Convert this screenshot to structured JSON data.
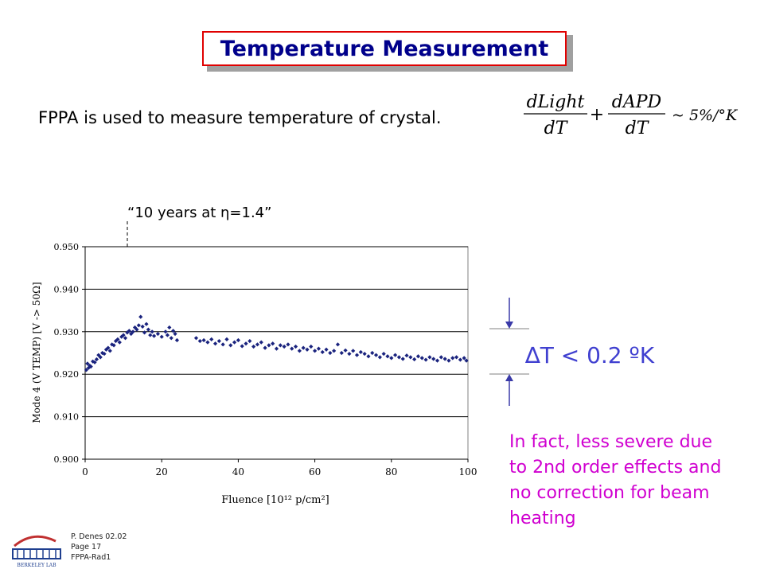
{
  "slide": {
    "title": "Temperature Measurement",
    "intro": "FPPA is used to measure temperature of crystal.",
    "formula": {
      "t1_num": "dLight",
      "t1_den": "dT",
      "plus": "+",
      "t2_num": "dAPD",
      "t2_den": "dT",
      "rhs": "~ 5%/°K"
    },
    "annotation": "“10 years at η=1.4”",
    "delta_label": "∆T < 0.2 ºK",
    "note_lines": [
      "In fact, less severe due",
      "to 2nd order effects and",
      "no correction for beam",
      "heating"
    ],
    "footer": {
      "author": "P. Denes 02.02",
      "page": "Page 17",
      "doc": "FPPA-Rad1"
    },
    "logo_text": "BERKELEY LAB"
  },
  "chart_data": {
    "type": "scatter",
    "title": "",
    "xlabel": "Fluence [10¹² p/cm²]",
    "ylabel": "Mode 4 (V TEMP) [V -> 50Ω]",
    "xlim": [
      0,
      100
    ],
    "ylim": [
      0.9,
      0.95
    ],
    "xticks": [
      "0",
      "20",
      "40",
      "60",
      "80",
      "100"
    ],
    "yticks": [
      "0.900",
      "0.910",
      "0.920",
      "0.930",
      "0.940",
      "0.950"
    ],
    "grid": "horizontal",
    "legend": "none",
    "marker_color": "#1a237e",
    "series": [
      {
        "marker": "diamond",
        "points": [
          [
            0.3,
            0.921
          ],
          [
            0.6,
            0.9225
          ],
          [
            0.9,
            0.9215
          ],
          [
            1.2,
            0.922
          ],
          [
            1.5,
            0.9218
          ],
          [
            2.0,
            0.923
          ],
          [
            2.5,
            0.9228
          ],
          [
            3.0,
            0.9235
          ],
          [
            3.5,
            0.9245
          ],
          [
            4.0,
            0.924
          ],
          [
            4.5,
            0.925
          ],
          [
            5.0,
            0.9248
          ],
          [
            5.5,
            0.9258
          ],
          [
            6.0,
            0.9262
          ],
          [
            6.5,
            0.9255
          ],
          [
            7.0,
            0.927
          ],
          [
            7.5,
            0.9268
          ],
          [
            8.0,
            0.9278
          ],
          [
            8.5,
            0.9282
          ],
          [
            9.0,
            0.9275
          ],
          [
            9.5,
            0.9288
          ],
          [
            10.0,
            0.9292
          ],
          [
            10.5,
            0.9285
          ],
          [
            11.0,
            0.9298
          ],
          [
            11.5,
            0.9302
          ],
          [
            12.0,
            0.9295
          ],
          [
            12.5,
            0.93
          ],
          [
            13.0,
            0.931
          ],
          [
            13.5,
            0.9305
          ],
          [
            14.0,
            0.9315
          ],
          [
            14.5,
            0.9335
          ],
          [
            15.0,
            0.9312
          ],
          [
            15.5,
            0.9298
          ],
          [
            16.0,
            0.9318
          ],
          [
            16.5,
            0.9305
          ],
          [
            17.0,
            0.9292
          ],
          [
            17.5,
            0.93
          ],
          [
            18.0,
            0.929
          ],
          [
            19.0,
            0.9295
          ],
          [
            20.0,
            0.9288
          ],
          [
            21.0,
            0.93
          ],
          [
            21.5,
            0.9292
          ],
          [
            22.0,
            0.931
          ],
          [
            22.5,
            0.9285
          ],
          [
            23.0,
            0.9302
          ],
          [
            23.5,
            0.9295
          ],
          [
            24.0,
            0.928
          ],
          [
            29.0,
            0.9285
          ],
          [
            30.0,
            0.9278
          ],
          [
            31.0,
            0.928
          ],
          [
            32.0,
            0.9275
          ],
          [
            33.0,
            0.9282
          ],
          [
            34.0,
            0.9272
          ],
          [
            35.0,
            0.9278
          ],
          [
            36.0,
            0.927
          ],
          [
            37.0,
            0.9282
          ],
          [
            38.0,
            0.9268
          ],
          [
            39.0,
            0.9275
          ],
          [
            40.0,
            0.928
          ],
          [
            41.0,
            0.9266
          ],
          [
            42.0,
            0.9272
          ],
          [
            43.0,
            0.9278
          ],
          [
            44.0,
            0.9265
          ],
          [
            45.0,
            0.927
          ],
          [
            46.0,
            0.9275
          ],
          [
            47.0,
            0.9262
          ],
          [
            48.0,
            0.9268
          ],
          [
            49.0,
            0.9272
          ],
          [
            50.0,
            0.926
          ],
          [
            51.0,
            0.9268
          ],
          [
            52.0,
            0.9265
          ],
          [
            53.0,
            0.927
          ],
          [
            54.0,
            0.926
          ],
          [
            55.0,
            0.9265
          ],
          [
            56.0,
            0.9255
          ],
          [
            57.0,
            0.9262
          ],
          [
            58.0,
            0.9258
          ],
          [
            59.0,
            0.9265
          ],
          [
            60.0,
            0.9255
          ],
          [
            61.0,
            0.926
          ],
          [
            62.0,
            0.9252
          ],
          [
            63.0,
            0.9258
          ],
          [
            64.0,
            0.925
          ],
          [
            65.0,
            0.9255
          ],
          [
            66.0,
            0.927
          ],
          [
            67.0,
            0.925
          ],
          [
            68.0,
            0.9256
          ],
          [
            69.0,
            0.9248
          ],
          [
            70.0,
            0.9255
          ],
          [
            71.0,
            0.9245
          ],
          [
            72.0,
            0.9252
          ],
          [
            73.0,
            0.9248
          ],
          [
            74.0,
            0.9242
          ],
          [
            75.0,
            0.925
          ],
          [
            76.0,
            0.9245
          ],
          [
            77.0,
            0.924
          ],
          [
            78.0,
            0.9248
          ],
          [
            79.0,
            0.9242
          ],
          [
            80.0,
            0.9238
          ],
          [
            81.0,
            0.9245
          ],
          [
            82.0,
            0.924
          ],
          [
            83.0,
            0.9236
          ],
          [
            84.0,
            0.9244
          ],
          [
            85.0,
            0.924
          ],
          [
            86.0,
            0.9235
          ],
          [
            87.0,
            0.9242
          ],
          [
            88.0,
            0.9238
          ],
          [
            89.0,
            0.9234
          ],
          [
            90.0,
            0.924
          ],
          [
            91.0,
            0.9236
          ],
          [
            92.0,
            0.9232
          ],
          [
            93.0,
            0.924
          ],
          [
            94.0,
            0.9236
          ],
          [
            95.0,
            0.9232
          ],
          [
            96.0,
            0.9238
          ],
          [
            97.0,
            0.924
          ],
          [
            98.0,
            0.9234
          ],
          [
            99.0,
            0.9238
          ],
          [
            99.6,
            0.9232
          ]
        ]
      }
    ]
  }
}
